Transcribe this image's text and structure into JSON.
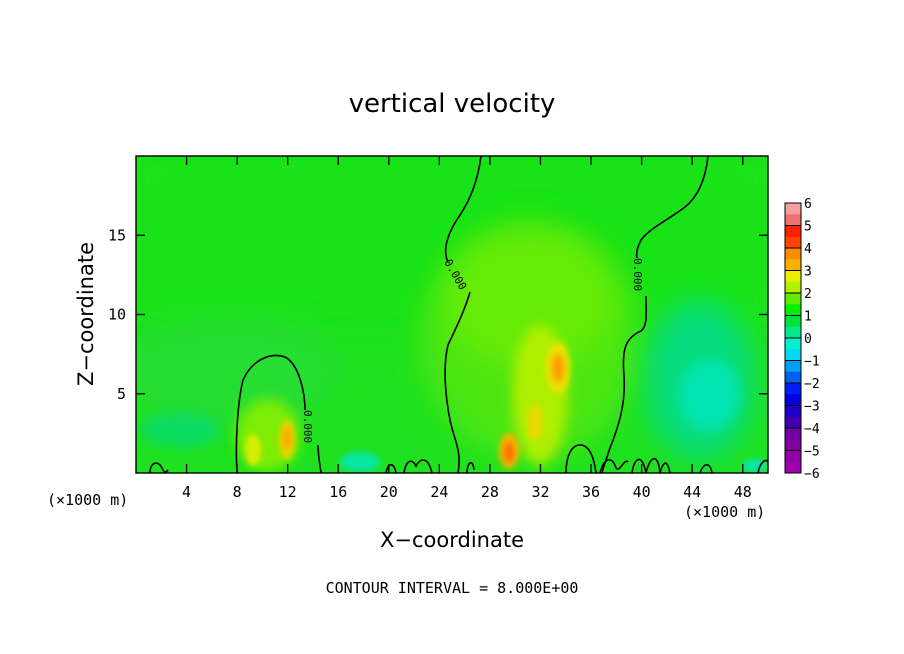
{
  "chart_data": {
    "type": "heatmap",
    "title": "vertical velocity",
    "xlabel": "X−coordinate",
    "ylabel": "Z−coordinate",
    "x_unit_left": "(×1000 m)",
    "x_unit_right": "(×1000 m)",
    "xlim": [
      0,
      50
    ],
    "ylim": [
      0,
      20
    ],
    "x_ticks": [
      4,
      8,
      12,
      16,
      20,
      24,
      28,
      32,
      36,
      40,
      44,
      48
    ],
    "y_ticks": [
      5,
      10,
      15
    ],
    "contour_label": "0.000",
    "colorbar": {
      "ticks": [
        "6",
        "5",
        "4",
        "3",
        "2",
        "1",
        "0",
        "−1",
        "−2",
        "−3",
        "−4",
        "−5",
        "−6"
      ],
      "colors": [
        "#f5a0a0",
        "#f07070",
        "#ff2000",
        "#ff4500",
        "#ff8c00",
        "#ffb000",
        "#eded00",
        "#b0f000",
        "#60ee00",
        "#00ee00",
        "#00e040",
        "#00e88a",
        "#00f0d0",
        "#00d8f0",
        "#00a0f0",
        "#0060f0",
        "#0020f0",
        "#0000e0",
        "#2000c8",
        "#4000b0",
        "#7000a0",
        "#8000a0",
        "#9000a8",
        "#a000b0"
      ]
    },
    "contour_interval_note": "CONTOUR INTERVAL = 8.000E+00"
  }
}
